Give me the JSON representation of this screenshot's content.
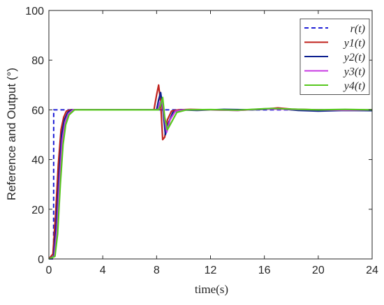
{
  "chart_data": {
    "type": "line",
    "xlabel": "time(s)",
    "ylabel": "Reference and Output (°)",
    "xlim": [
      0,
      24
    ],
    "ylim": [
      0,
      100
    ],
    "xticks": [
      0,
      4,
      8,
      12,
      16,
      20,
      24
    ],
    "yticks": [
      0,
      20,
      40,
      60,
      80,
      100
    ],
    "grid": false,
    "legend_position": "top-right",
    "series": [
      {
        "name": "r(t)",
        "color": "#1f1fd6",
        "style": "dashed",
        "x": [
          0,
          0.35,
          0.36,
          24
        ],
        "y": [
          0,
          0,
          60,
          60
        ]
      },
      {
        "name": "y1(t)",
        "color": "#c0231e",
        "style": "solid",
        "x": [
          0,
          0.3,
          0.5,
          0.7,
          0.9,
          1.1,
          1.3,
          1.6,
          2,
          4,
          6,
          7.8,
          8.0,
          8.15,
          8.3,
          8.45,
          8.6,
          8.8,
          9.1,
          9.6,
          10.5,
          12,
          14,
          16,
          17,
          18,
          20,
          22,
          24
        ],
        "y": [
          0,
          2,
          18,
          38,
          52,
          57,
          59.5,
          60,
          60,
          60,
          60,
          60,
          66,
          70,
          63,
          48,
          49,
          56,
          59.5,
          60,
          60.2,
          60,
          59.8,
          60.3,
          60.8,
          60.3,
          60,
          59.8,
          59.8
        ]
      },
      {
        "name": "y2(t)",
        "color": "#0c1f8f",
        "style": "solid",
        "x": [
          0,
          0.35,
          0.55,
          0.75,
          0.95,
          1.15,
          1.4,
          1.7,
          2.2,
          4,
          6,
          8.0,
          8.15,
          8.3,
          8.45,
          8.65,
          8.9,
          9.2,
          9.8,
          11,
          13,
          15,
          17,
          18.5,
          20,
          22,
          24
        ],
        "y": [
          0,
          1,
          14,
          34,
          50,
          56,
          59,
          60,
          60,
          60,
          60,
          60,
          64,
          67,
          61,
          50,
          55,
          59,
          60,
          59.8,
          60.2,
          60,
          60.5,
          59.8,
          59.5,
          59.8,
          59.7
        ]
      },
      {
        "name": "y3(t)",
        "color": "#c83be3",
        "style": "solid",
        "x": [
          0,
          0.4,
          0.6,
          0.8,
          1.0,
          1.2,
          1.45,
          1.8,
          2.3,
          4,
          6,
          8.1,
          8.25,
          8.4,
          8.55,
          8.75,
          9.0,
          9.4,
          10,
          12,
          14,
          16,
          18,
          20,
          22,
          24
        ],
        "y": [
          0,
          1,
          12,
          32,
          48,
          55,
          58.5,
          60,
          60,
          60,
          60,
          60,
          63,
          64,
          58,
          51,
          56,
          59.5,
          60,
          60,
          59.8,
          60.4,
          60.2,
          60,
          59.9,
          60
        ]
      },
      {
        "name": "y4(t)",
        "color": "#57c81e",
        "style": "solid",
        "x": [
          0,
          0.45,
          0.65,
          0.85,
          1.05,
          1.25,
          1.5,
          1.9,
          2.4,
          4,
          6,
          8.15,
          8.3,
          8.45,
          8.6,
          8.8,
          9.1,
          9.5,
          10.2,
          12,
          14,
          16.5,
          18,
          20,
          22,
          24
        ],
        "y": [
          0,
          1,
          10,
          30,
          46,
          54,
          58,
          60,
          60,
          60,
          60,
          60,
          62,
          65,
          57,
          52,
          55,
          59,
          60,
          60.1,
          59.9,
          60.6,
          60.3,
          60,
          60.2,
          60
        ]
      }
    ]
  }
}
